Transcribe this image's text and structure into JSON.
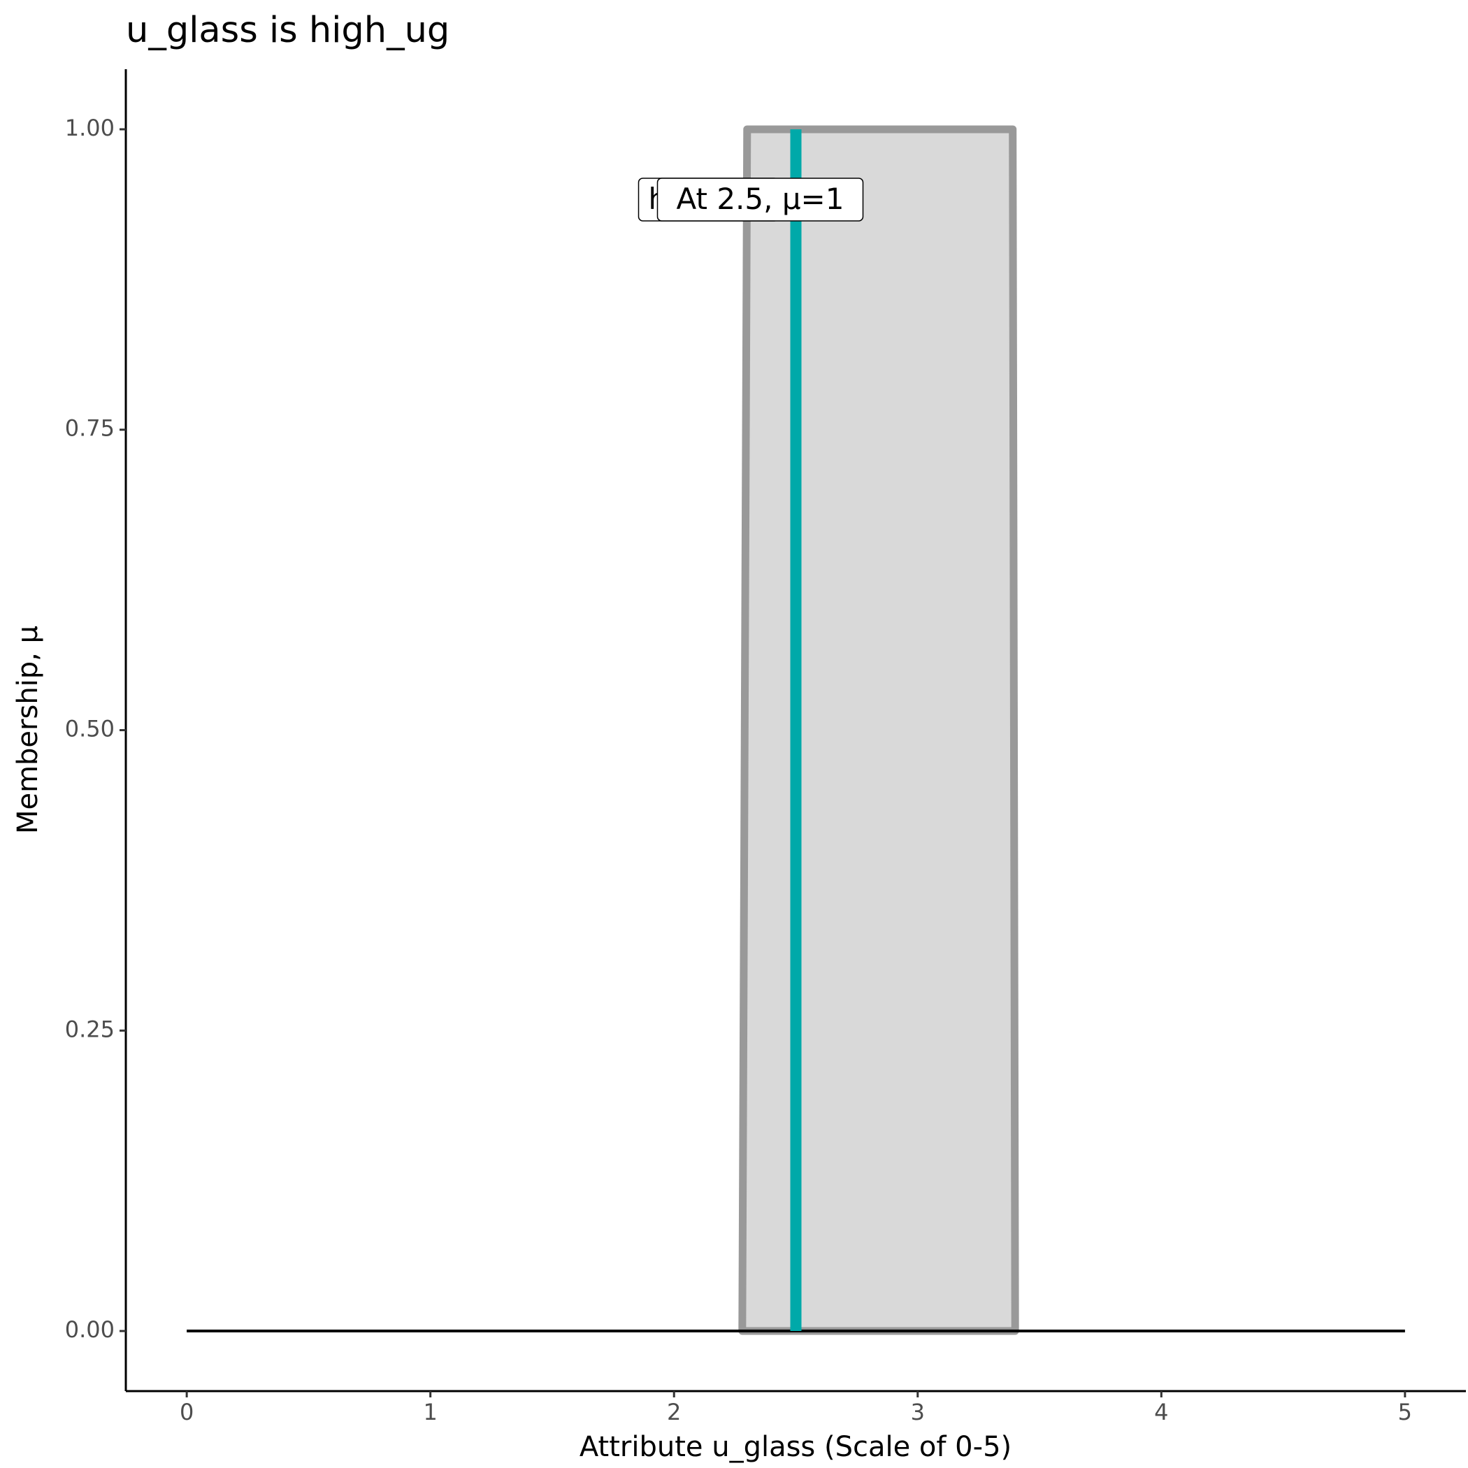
{
  "chart_data": {
    "type": "membership",
    "title": "u_glass is high_ug",
    "x_label": "Attribute u_glass (Scale of 0-5)",
    "y_label": "Membership, μ",
    "shape": {
      "x": [
        2.28,
        2.3,
        3.39,
        3.4
      ],
      "y": [
        0,
        1,
        1,
        0
      ],
      "color": "#999999",
      "fill": "#d9d9d9"
    },
    "baseline": {
      "x": [
        0,
        5
      ],
      "y": [
        0,
        0
      ],
      "color": "#000000"
    },
    "marker": {
      "x": 2.5,
      "y": [
        0,
        1
      ],
      "color": "#00a9a9"
    },
    "annotations": [
      "h",
      "At 2.5, μ=1"
    ],
    "xlim": [
      -0.25,
      5.25
    ],
    "ylim": [
      -0.05,
      1.05
    ],
    "xticks": [
      0,
      1,
      2,
      3,
      4,
      5
    ],
    "yticks": [
      {
        "value": 0,
        "label": "0.00"
      },
      {
        "value": 0.25,
        "label": "0.25"
      },
      {
        "value": 0.5,
        "label": "0.50"
      },
      {
        "value": 0.75,
        "label": "0.75"
      },
      {
        "value": 1,
        "label": "1.00"
      }
    ],
    "grid": false
  }
}
